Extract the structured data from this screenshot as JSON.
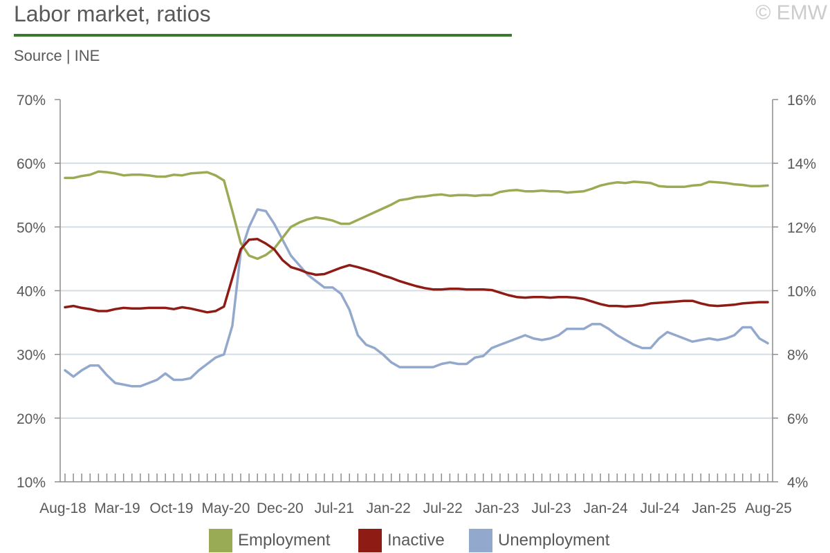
{
  "header": {
    "title": "Labor market, ratios",
    "source": "Source | INE",
    "copyright": "© EMW"
  },
  "chart_data": {
    "type": "line",
    "title": "Labor market, ratios",
    "left_axis": {
      "min": 10,
      "max": 70,
      "step": 10,
      "tick_labels": [
        "10%",
        "20%",
        "30%",
        "40%",
        "50%",
        "60%",
        "70%"
      ]
    },
    "right_axis": {
      "min": 4,
      "max": 16,
      "step": 2,
      "tick_labels": [
        "4%",
        "6%",
        "8%",
        "10%",
        "12%",
        "14%",
        "16%"
      ]
    },
    "x_tick_labels": [
      "Aug-18",
      "Mar-19",
      "Oct-19",
      "May-20",
      "Dec-20",
      "Jul-21",
      "Jan-22",
      "Jul-22",
      "Jan-23",
      "Jul-23",
      "Jan-24",
      "Jul-24",
      "Jan-25",
      "Aug-25"
    ],
    "grid": true,
    "legend_position": "bottom",
    "series": [
      {
        "name": "Employment",
        "axis": "left",
        "color": "#9aab55",
        "values": [
          57.7,
          57.7,
          58.0,
          58.2,
          58.7,
          58.6,
          58.4,
          58.1,
          58.2,
          58.2,
          58.1,
          57.9,
          57.9,
          58.2,
          58.1,
          58.4,
          58.5,
          58.6,
          58.1,
          57.3,
          52.5,
          47.5,
          45.5,
          45.0,
          45.6,
          46.6,
          48.3,
          50.0,
          50.7,
          51.2,
          51.5,
          51.3,
          51.0,
          50.5,
          50.5,
          51.1,
          51.7,
          52.3,
          52.9,
          53.5,
          54.2,
          54.4,
          54.7,
          54.8,
          55.0,
          55.1,
          54.9,
          55.0,
          55.0,
          54.9,
          55.0,
          55.0,
          55.5,
          55.7,
          55.8,
          55.6,
          55.6,
          55.7,
          55.6,
          55.6,
          55.4,
          55.5,
          55.6,
          56.0,
          56.5,
          56.8,
          57.0,
          56.9,
          57.1,
          57.0,
          56.9,
          56.4,
          56.3,
          56.3,
          56.3,
          56.5,
          56.6,
          57.1,
          57.0,
          56.9,
          56.7,
          56.6,
          56.4,
          56.4,
          56.5
        ]
      },
      {
        "name": "Inactive",
        "axis": "left",
        "color": "#8e1b14",
        "values": [
          37.4,
          37.6,
          37.3,
          37.1,
          36.8,
          36.8,
          37.1,
          37.3,
          37.2,
          37.2,
          37.3,
          37.3,
          37.3,
          37.1,
          37.4,
          37.2,
          36.9,
          36.6,
          36.8,
          37.5,
          42.0,
          46.5,
          48.0,
          48.1,
          47.4,
          46.5,
          44.8,
          43.7,
          43.3,
          42.8,
          42.5,
          42.6,
          43.1,
          43.6,
          44.0,
          43.7,
          43.3,
          42.9,
          42.4,
          42.0,
          41.5,
          41.1,
          40.7,
          40.4,
          40.2,
          40.2,
          40.3,
          40.3,
          40.2,
          40.2,
          40.2,
          40.1,
          39.7,
          39.3,
          39.0,
          38.9,
          39.0,
          39.0,
          38.9,
          39.0,
          39.0,
          38.9,
          38.7,
          38.3,
          37.9,
          37.6,
          37.6,
          37.5,
          37.6,
          37.7,
          38.0,
          38.1,
          38.2,
          38.3,
          38.4,
          38.4,
          38.0,
          37.7,
          37.6,
          37.7,
          37.8,
          38.0,
          38.1,
          38.2,
          38.2
        ]
      },
      {
        "name": "Unemployment",
        "axis": "right",
        "color": "#92a8cc",
        "values": [
          7.5,
          7.3,
          7.5,
          7.65,
          7.65,
          7.35,
          7.1,
          7.05,
          7.0,
          7.0,
          7.1,
          7.2,
          7.4,
          7.2,
          7.2,
          7.25,
          7.5,
          7.7,
          7.9,
          8.0,
          8.9,
          11.2,
          12.0,
          12.55,
          12.5,
          12.1,
          11.6,
          11.1,
          10.8,
          10.5,
          10.3,
          10.1,
          10.1,
          9.9,
          9.4,
          8.6,
          8.3,
          8.2,
          8.0,
          7.75,
          7.6,
          7.6,
          7.6,
          7.6,
          7.6,
          7.7,
          7.75,
          7.7,
          7.7,
          7.9,
          7.95,
          8.2,
          8.3,
          8.4,
          8.5,
          8.6,
          8.5,
          8.45,
          8.5,
          8.6,
          8.8,
          8.8,
          8.8,
          8.95,
          8.95,
          8.8,
          8.6,
          8.45,
          8.3,
          8.2,
          8.2,
          8.5,
          8.7,
          8.6,
          8.5,
          8.4,
          8.45,
          8.5,
          8.45,
          8.5,
          8.6,
          8.85,
          8.85,
          8.5,
          8.35
        ]
      }
    ]
  }
}
